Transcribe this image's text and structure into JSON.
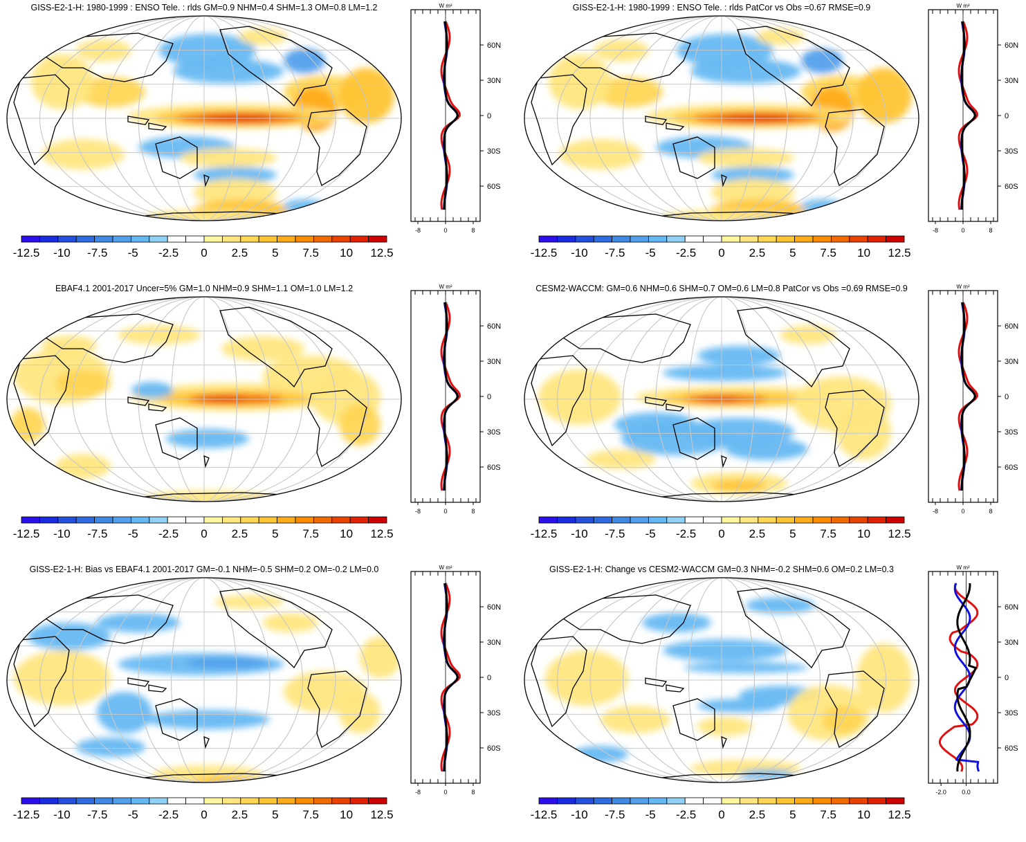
{
  "colorbar": {
    "colors": [
      "#2a0fe8",
      "#1a2ce0",
      "#2450dc",
      "#2f6ce0",
      "#3f88e4",
      "#52a0ec",
      "#66b8f2",
      "#8fd0f4",
      "#ffffff",
      "#ffffff",
      "#fff6a0",
      "#ffe680",
      "#ffd655",
      "#ffc433",
      "#ffab1a",
      "#fa8c00",
      "#f06a00",
      "#e84400",
      "#e02200",
      "#cc0000"
    ],
    "labels": [
      "-12.5",
      "-10",
      "-7.5",
      "-5",
      "-2.5",
      "0",
      "2.5",
      "5",
      "7.5",
      "10",
      "12.5"
    ]
  },
  "profile": {
    "unit": "W m²",
    "lat_labels": [
      "60N",
      "30N",
      "0",
      "30S",
      "60S"
    ],
    "series_colors": {
      "model": "#e01010",
      "obs": "#1010e0",
      "other": "#000000"
    }
  },
  "panels": [
    {
      "title": "GISS-E2-1-H: 1980-1999 : ENSO Tele. : rlds GM=0.9 NHM=0.4 SHM=1.3 OM=0.8 LM=1.2",
      "x_ticks": [
        "-8",
        "0",
        "8"
      ],
      "pattern": "model"
    },
    {
      "title": "GISS-E2-1-H: 1980-1999 : ENSO Tele. : rlds PatCor vs Obs =0.67 RMSE=0.9",
      "x_ticks": [
        "-8",
        "0",
        "8"
      ],
      "pattern": "model"
    },
    {
      "title": "EBAF4.1 2001-2017 Uncer=5% GM=1.0 NHM=0.9 SHM=1.1 OM=1.0 LM=1.2",
      "x_ticks": [
        "-8",
        "0",
        "8"
      ],
      "pattern": "obs"
    },
    {
      "title": "CESM2-WACCM: GM=0.6 NHM=0.6 SHM=0.7 OM=0.6 LM=0.8 PatCor vs Obs =0.69 RMSE=0.9",
      "x_ticks": [
        "-8",
        "0",
        "8"
      ],
      "pattern": "cesm"
    },
    {
      "title": "GISS-E2-1-H: Bias vs EBAF4.1 2001-2017 GM=-0.1 NHM=-0.5 SHM=0.2 OM=-0.2 LM=0.0",
      "x_ticks": [
        "-8",
        "0",
        "8"
      ],
      "pattern": "bias"
    },
    {
      "title": "GISS-E2-1-H: Change vs CESM2-WACCM GM=0.3 NHM=-0.2 SHM=0.6 OM=0.2 LM=0.3",
      "x_ticks": [
        "-2.0",
        "0.0"
      ],
      "pattern": "change"
    }
  ]
}
